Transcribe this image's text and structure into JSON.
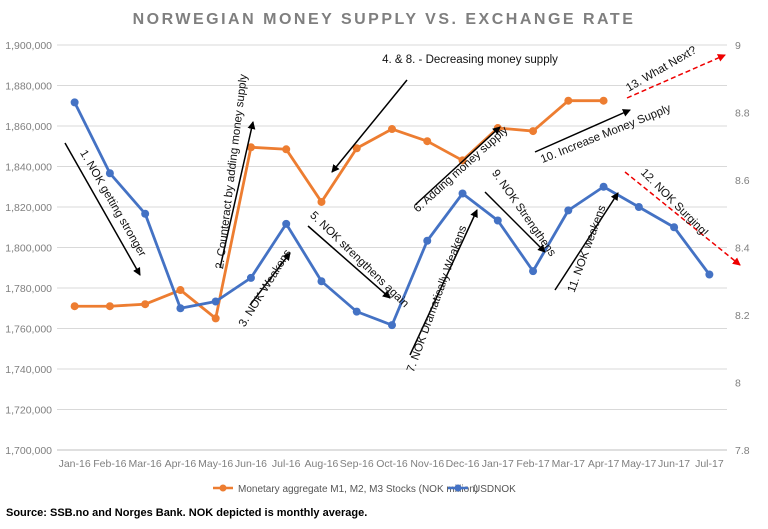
{
  "chart_data": {
    "type": "line",
    "title": "NORWEGIAN MONEY SUPPLY VS. EXCHANGE RATE",
    "categories": [
      "Jan-16",
      "Feb-16",
      "Mar-16",
      "Apr-16",
      "May-16",
      "Jun-16",
      "Jul-16",
      "Aug-16",
      "Sep-16",
      "Oct-16",
      "Nov-16",
      "Dec-16",
      "Jan-17",
      "Feb-17",
      "Mar-17",
      "Apr-17",
      "May-17",
      "Jun-17",
      "Jul-17"
    ],
    "y_left": {
      "range": [
        1700000,
        1900000
      ],
      "ticks": [
        "1,700,000",
        "1,720,000",
        "1,740,000",
        "1,760,000",
        "1,780,000",
        "1,800,000",
        "1,820,000",
        "1,840,000",
        "1,860,000",
        "1,880,000",
        "1,900,000"
      ]
    },
    "y_right": {
      "range": [
        7.8,
        9
      ],
      "ticks": [
        "7.8",
        "8",
        "8.2",
        "8.4",
        "8.6",
        "8.8",
        "9"
      ]
    },
    "grid": true,
    "legend_position": "bottom",
    "series": [
      {
        "name": "Monetary aggregate M1, M2, M3 Stocks (NOK million)",
        "axis": "left",
        "color": "#ED7D31",
        "values": [
          1771000,
          1771000,
          1772000,
          1779000,
          1765000,
          1849500,
          1848500,
          1822500,
          1849000,
          1858500,
          1852500,
          1843000,
          1859000,
          1857500,
          1872500,
          1872500,
          null,
          null,
          null
        ]
      },
      {
        "name": "USDNOK",
        "axis": "right",
        "color": "#4472C4",
        "values": [
          8.83,
          8.62,
          8.5,
          8.22,
          8.24,
          8.31,
          8.47,
          8.3,
          8.21,
          8.17,
          8.42,
          8.56,
          8.48,
          8.33,
          8.51,
          8.58,
          8.52,
          8.46,
          8.32
        ]
      }
    ],
    "annotations": [
      "1. NOK getting stronger",
      "2. Counteract by adding money supply",
      "3. NOK Weakens",
      "4. & 8. - Decreasing money supply",
      "5. NOK strengthens again",
      "6. Adding money supply",
      "7. NOK Dramatically Weakens",
      "9. NOK Strengthens",
      "10. Increase Money Supply",
      "11. NOK weakens",
      "12. NOK Surging!",
      "13. What Next?"
    ]
  },
  "source": "Source: SSB.no and Norges Bank. NOK depicted is monthly average."
}
